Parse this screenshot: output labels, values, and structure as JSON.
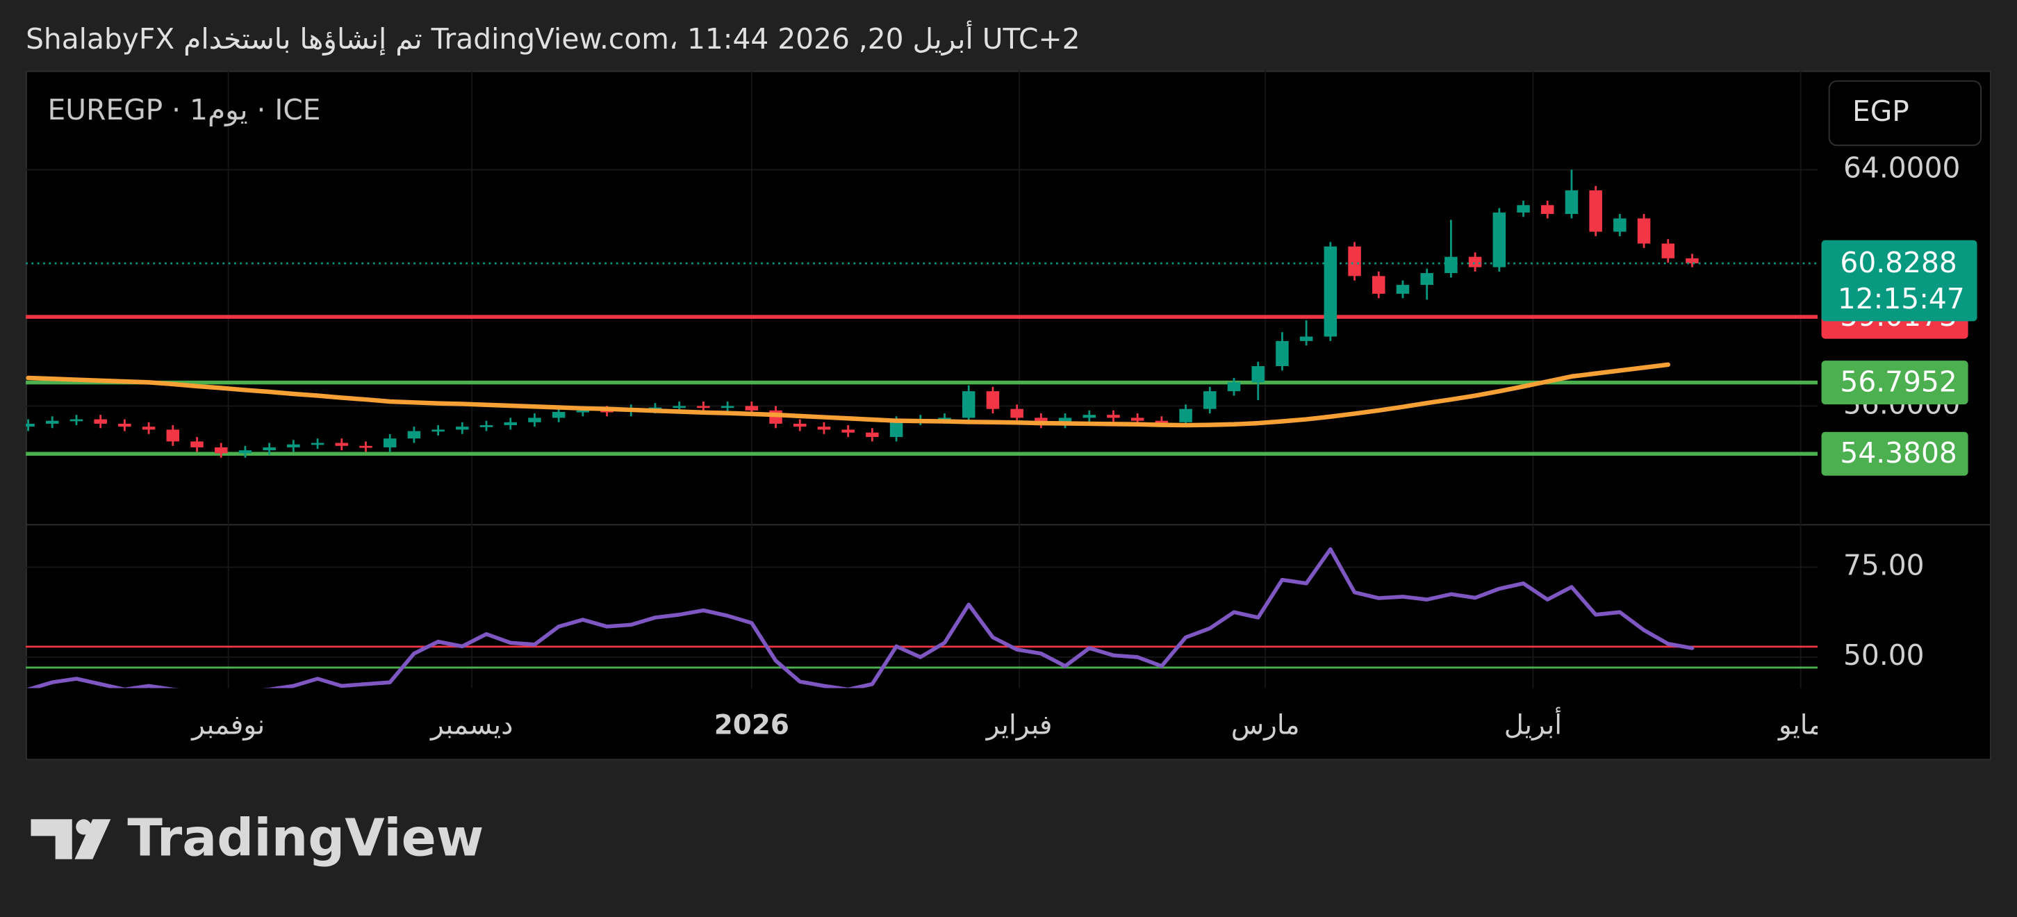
{
  "chart_data": {
    "type": "candlestick",
    "title": "ShalabyFX تم إنشاؤها باستخدام TradingView.com، 11:44 2026 ,20 أبريل UTC+2",
    "legend_label": "EUREGP · 1يوم · ICE",
    "currency": "EGP",
    "brand": "TradingView",
    "up_color": "#089981",
    "down_color": "#f23645",
    "open": [
      55.3,
      55.4,
      55.5,
      55.55,
      55.4,
      55.3,
      55.2,
      54.8,
      54.6,
      54.4,
      54.5,
      54.6,
      54.7,
      54.75,
      54.65,
      54.6,
      54.9,
      55.15,
      55.2,
      55.3,
      55.35,
      55.45,
      55.6,
      55.8,
      55.85,
      55.8,
      55.9,
      55.95,
      56.0,
      55.95,
      56.0,
      55.85,
      55.4,
      55.3,
      55.2,
      55.1,
      54.95,
      55.5,
      55.55,
      55.6,
      56.5,
      55.9,
      55.6,
      55.4,
      55.6,
      55.7,
      55.6,
      55.5,
      55.45,
      55.9,
      56.5,
      56.8,
      57.35,
      58.2,
      58.35,
      61.4,
      60.4,
      59.8,
      60.1,
      60.5,
      61.05,
      60.7,
      62.55,
      62.8,
      62.5,
      63.3,
      61.9,
      62.35,
      61.5,
      61.0
    ],
    "high": [
      55.55,
      55.65,
      55.7,
      55.7,
      55.55,
      55.45,
      55.35,
      54.95,
      54.75,
      54.65,
      54.75,
      54.85,
      54.9,
      54.9,
      54.8,
      55.05,
      55.3,
      55.35,
      55.45,
      55.5,
      55.6,
      55.75,
      55.95,
      56.0,
      56.0,
      56.05,
      56.1,
      56.15,
      56.15,
      56.15,
      56.15,
      56.0,
      55.55,
      55.45,
      55.35,
      55.25,
      55.65,
      55.7,
      55.75,
      56.7,
      56.65,
      56.05,
      55.75,
      55.75,
      55.85,
      55.85,
      55.75,
      55.65,
      56.05,
      56.65,
      56.95,
      57.5,
      58.5,
      58.9,
      61.55,
      61.55,
      60.55,
      60.25,
      60.65,
      62.3,
      61.2,
      62.7,
      62.95,
      62.95,
      64.0,
      63.45,
      62.5,
      62.5,
      61.65,
      61.15
    ],
    "low": [
      55.15,
      55.25,
      55.35,
      55.25,
      55.15,
      55.05,
      54.65,
      54.45,
      54.25,
      54.25,
      54.35,
      54.45,
      54.55,
      54.5,
      54.45,
      54.45,
      54.75,
      55.0,
      55.05,
      55.15,
      55.2,
      55.3,
      55.45,
      55.65,
      55.65,
      55.65,
      55.75,
      55.8,
      55.8,
      55.8,
      55.7,
      55.25,
      55.15,
      55.05,
      54.95,
      54.8,
      54.8,
      55.35,
      55.4,
      55.45,
      55.75,
      55.45,
      55.25,
      55.25,
      55.45,
      55.45,
      55.35,
      55.3,
      55.3,
      55.75,
      56.35,
      56.2,
      57.2,
      58.05,
      58.2,
      60.25,
      59.65,
      59.65,
      59.6,
      60.35,
      60.55,
      60.55,
      62.4,
      62.35,
      62.35,
      61.75,
      61.75,
      61.35,
      60.85,
      60.7
    ],
    "close": [
      55.4,
      55.5,
      55.55,
      55.4,
      55.3,
      55.2,
      54.8,
      54.6,
      54.4,
      54.5,
      54.6,
      54.7,
      54.75,
      54.65,
      54.6,
      54.9,
      55.15,
      55.2,
      55.3,
      55.35,
      55.45,
      55.6,
      55.8,
      55.85,
      55.8,
      55.9,
      55.95,
      56.0,
      55.95,
      56.0,
      55.85,
      55.4,
      55.3,
      55.2,
      55.1,
      54.95,
      55.5,
      55.55,
      55.6,
      56.5,
      55.9,
      55.6,
      55.4,
      55.6,
      55.7,
      55.6,
      55.5,
      55.45,
      55.9,
      56.5,
      56.8,
      57.35,
      58.2,
      58.35,
      61.4,
      60.4,
      59.8,
      60.1,
      60.5,
      61.05,
      60.7,
      62.55,
      62.8,
      62.5,
      63.3,
      61.9,
      62.35,
      61.5,
      61.0,
      60.83
    ],
    "moving_average": {
      "color": "#f7a035",
      "values": [
        56.95,
        56.92,
        56.89,
        56.86,
        56.83,
        56.8,
        56.74,
        56.67,
        56.61,
        56.54,
        56.48,
        56.41,
        56.35,
        56.28,
        56.22,
        56.15,
        56.12,
        56.09,
        56.07,
        56.04,
        56.01,
        55.98,
        55.95,
        55.92,
        55.9,
        55.87,
        55.84,
        55.81,
        55.78,
        55.76,
        55.73,
        55.7,
        55.66,
        55.62,
        55.58,
        55.54,
        55.5,
        55.49,
        55.48,
        55.46,
        55.45,
        55.44,
        55.42,
        55.41,
        55.4,
        55.39,
        55.38,
        55.36,
        55.35,
        55.36,
        55.38,
        55.42,
        55.48,
        55.55,
        55.64,
        55.74,
        55.85,
        55.97,
        56.1,
        56.22,
        56.35,
        56.5,
        56.66,
        56.83,
        57.0,
        57.1,
        57.2,
        57.3,
        57.4,
        null
      ]
    },
    "xlim": [
      -0.1,
      74.2
    ],
    "xticks": [
      {
        "value": 8.3,
        "label": "نوفمبر"
      },
      {
        "value": 18.4,
        "label": "ديسمبر"
      },
      {
        "value": 30.0,
        "label": "2026"
      },
      {
        "value": 41.1,
        "label": "فبراير"
      },
      {
        "value": 51.3,
        "label": "مارس"
      },
      {
        "value": 62.4,
        "label": "أبريل"
      },
      {
        "value": 73.5,
        "label": "مايو"
      }
    ],
    "ylim": [
      51.98,
      67.35
    ],
    "yticks": [
      {
        "value": 64,
        "label": "64.0000"
      },
      {
        "value": 56,
        "label": "56.0000"
      }
    ],
    "grid": true,
    "levels": [
      {
        "value": 59.0173,
        "color": "#f23645"
      },
      {
        "value": 56.7952,
        "color": "#4caf50"
      },
      {
        "value": 54.3808,
        "color": "#4caf50"
      }
    ],
    "last_price": 60.8288,
    "countdown": "12:15:47",
    "indicator": {
      "color": "#7e57c2",
      "values": [
        41,
        43,
        44,
        42.5,
        41,
        42,
        41,
        40.5,
        40,
        40.5,
        41,
        42,
        44,
        42,
        42.5,
        43,
        51,
        54.3,
        53,
        56.4,
        54,
        53.5,
        58.5,
        60.4,
        58.5,
        59,
        61,
        61.8,
        63,
        61.5,
        59.5,
        49,
        43.2,
        42,
        41,
        42.5,
        53,
        50,
        54,
        64.6,
        55.5,
        52.1,
        51,
        47.5,
        52.5,
        50.5,
        50,
        47.5,
        55.5,
        58,
        62.5,
        61,
        71.5,
        70.5,
        80,
        68,
        66.4,
        66.8,
        66,
        67.5,
        66.5,
        69,
        70.5,
        66,
        69.5,
        61.8,
        62.5,
        57.5,
        53.7,
        52.5
      ],
      "ylim": [
        41.4,
        86.8
      ],
      "yticks": [
        {
          "value": 75,
          "label": "75.00"
        },
        {
          "value": 50,
          "label": "50.00"
        }
      ],
      "levels": [
        {
          "value": 52.9,
          "color": "#f23645"
        },
        {
          "value": 47.1,
          "color": "#4caf50"
        }
      ]
    }
  }
}
